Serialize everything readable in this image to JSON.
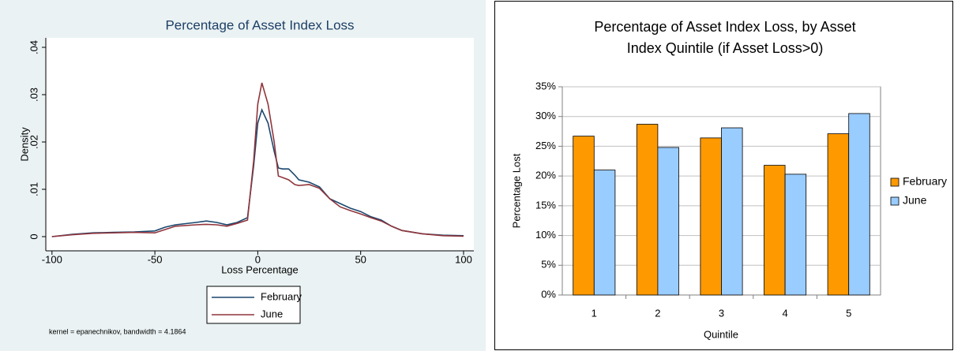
{
  "chart_data": [
    {
      "type": "line",
      "title": "Percentage of Asset Index Loss",
      "x_label": "Loss Percentage",
      "y_label": "Density",
      "note": "kernel = epanechnikov, bandwidth = 4.1864",
      "x": [
        -100,
        -90,
        -80,
        -70,
        -60,
        -50,
        -45,
        -40,
        -30,
        -25,
        -20,
        -15,
        -10,
        -5,
        -2,
        0,
        2,
        5,
        8,
        10,
        12,
        15,
        18,
        20,
        25,
        30,
        35,
        40,
        45,
        50,
        55,
        60,
        65,
        70,
        80,
        90,
        100
      ],
      "series": [
        {
          "name": "February",
          "color": "#1a476f",
          "values": [
            0,
            0.0005,
            0.0008,
            0.0009,
            0.001,
            0.0012,
            0.002,
            0.0025,
            0.003,
            0.0033,
            0.003,
            0.0025,
            0.003,
            0.004,
            0.015,
            0.024,
            0.0268,
            0.024,
            0.018,
            0.0145,
            0.0143,
            0.0143,
            0.013,
            0.012,
            0.0115,
            0.0105,
            0.008,
            0.007,
            0.006,
            0.0053,
            0.0042,
            0.0035,
            0.0022,
            0.0013,
            0.0006,
            0.0003,
            0.0002
          ]
        },
        {
          "name": "June",
          "color": "#90353b",
          "values": [
            0,
            0.0004,
            0.0007,
            0.0008,
            0.0009,
            0.0008,
            0.0015,
            0.0022,
            0.0025,
            0.0026,
            0.0025,
            0.0022,
            0.0028,
            0.0035,
            0.016,
            0.028,
            0.0325,
            0.028,
            0.02,
            0.0128,
            0.0125,
            0.012,
            0.011,
            0.0108,
            0.011,
            0.0102,
            0.008,
            0.0063,
            0.0055,
            0.0048,
            0.004,
            0.0033,
            0.0022,
            0.0013,
            0.0006,
            0.0002,
            0.0001
          ]
        }
      ],
      "xlim": [
        -103,
        105
      ],
      "xticks": [
        -100,
        -50,
        0,
        50,
        100
      ],
      "ylim": [
        -0.003,
        0.042
      ],
      "yticks": [
        0,
        {
          "value": 0.01,
          "label": ".01"
        },
        {
          "value": 0.02,
          "label": ".02"
        },
        {
          "value": 0.03,
          "label": ".03"
        },
        {
          "value": 0.04,
          "label": ".04"
        }
      ],
      "legend": "bottom"
    },
    {
      "type": "bar",
      "title": [
        "Percentage of Asset Index Loss, by Asset",
        "Index Quintile (if Asset Loss>0)"
      ],
      "x_label": "Quintile",
      "y_label": "Percentage Lost",
      "categories": [
        "1",
        "2",
        "3",
        "4",
        "5"
      ],
      "series": [
        {
          "name": "February",
          "color": "#ff9900",
          "values": [
            26.7,
            28.7,
            26.4,
            21.8,
            27.1
          ]
        },
        {
          "name": "June",
          "color": "#99ccff",
          "values": [
            21.0,
            24.8,
            28.1,
            20.3,
            30.5
          ]
        }
      ],
      "ylim": [
        0,
        35
      ],
      "yticks": [
        {
          "value": 0,
          "label": "0%"
        },
        {
          "value": 5,
          "label": "5%"
        },
        {
          "value": 10,
          "label": "10%"
        },
        {
          "value": 15,
          "label": "15%"
        },
        {
          "value": 20,
          "label": "20%"
        },
        {
          "value": 25,
          "label": "25%"
        },
        {
          "value": 30,
          "label": "30%"
        },
        {
          "value": 35,
          "label": "35%"
        }
      ],
      "grid": true,
      "legend": "right"
    }
  ]
}
